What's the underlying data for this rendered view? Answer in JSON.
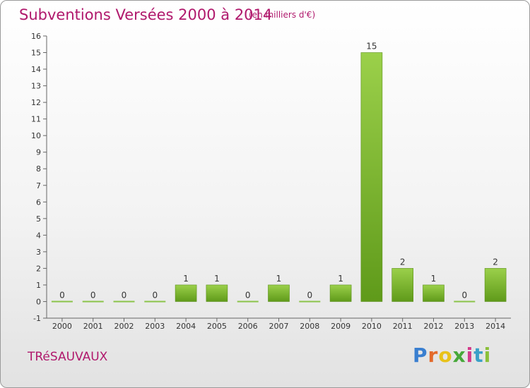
{
  "header": {
    "title": "Subventions Versées 2000 à 2014",
    "unit": "(en milliers d'€)"
  },
  "footer": {
    "commune": "TRéSAUVAUX",
    "logo_text": "Proxiti",
    "logo_colors": [
      "#3a7fd0",
      "#e36a2b",
      "#e8c21a",
      "#47a83a",
      "#d33a8a",
      "#3aa0c8",
      "#8bc03a"
    ]
  },
  "colors": {
    "title": "#b0186c",
    "bar_top": "#9bd04a",
    "bar_bottom": "#5f9a1a",
    "axis": "#666666"
  },
  "chart_data": {
    "type": "bar",
    "title": "Subventions Versées 2000 à 2014",
    "ylabel": "(en milliers d'€)",
    "xlabel": "",
    "categories": [
      "2000",
      "2001",
      "2002",
      "2003",
      "2004",
      "2005",
      "2006",
      "2007",
      "2008",
      "2009",
      "2010",
      "2011",
      "2012",
      "2013",
      "2014"
    ],
    "values": [
      0,
      0,
      0,
      0,
      1,
      1,
      0,
      1,
      0,
      1,
      15,
      2,
      1,
      0,
      2
    ],
    "ylim": [
      -1,
      16
    ],
    "yticks": [
      -1,
      0,
      1,
      2,
      3,
      4,
      5,
      6,
      7,
      8,
      9,
      10,
      11,
      12,
      13,
      14,
      15,
      16
    ],
    "grid": false,
    "legend": "none"
  }
}
